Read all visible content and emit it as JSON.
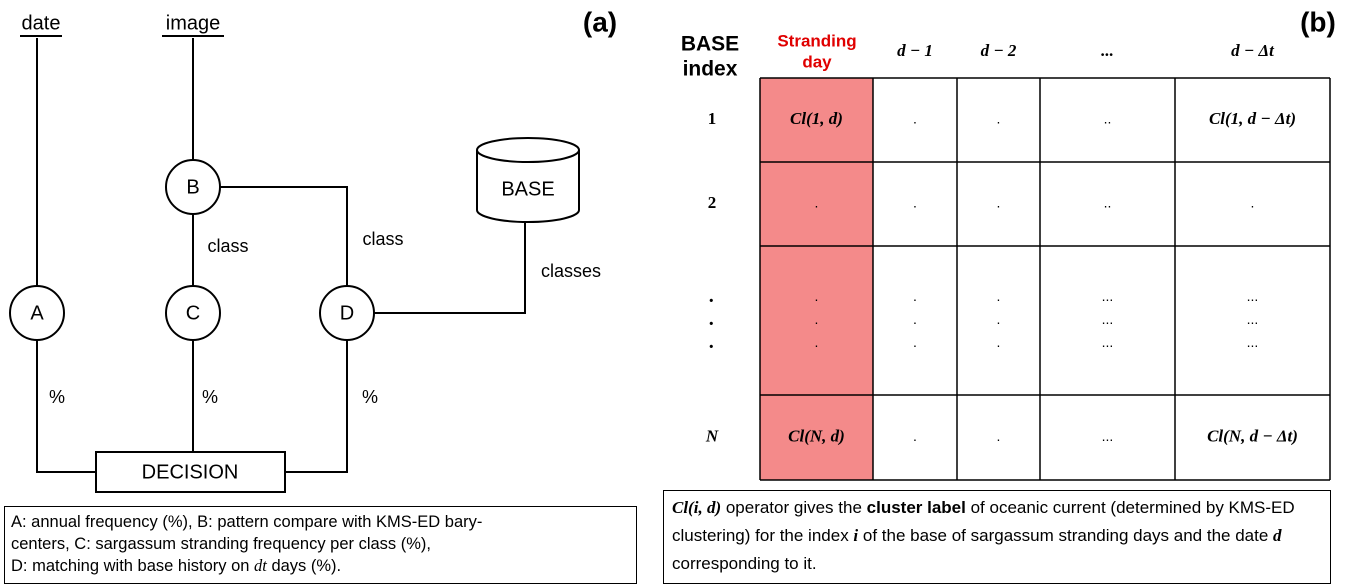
{
  "panel_a": {
    "label": "(a)",
    "inputs": [
      "date",
      "image"
    ],
    "nodes": [
      "A",
      "B",
      "C",
      "D"
    ],
    "base": "BASE",
    "decision": "DECISION",
    "edge_labels": [
      "class",
      "class",
      "classes",
      "%",
      "%",
      "%"
    ],
    "caption": [
      "A: annual frequency (%), B: pattern compare with KMS-ED bary-",
      "centers, C: sargassum stranding frequency per class (%),",
      "D: matching with base history on ",
      "dt",
      " days (%)."
    ]
  },
  "panel_b": {
    "label": "(b)",
    "index_header": [
      "BASE",
      "index"
    ],
    "highlight_header": [
      "Stranding",
      "day"
    ],
    "headers": [
      "d − 1",
      "d − 2",
      "...",
      "d − Δt"
    ],
    "rows": [
      [
        "1",
        "Cl(1, d)",
        ".",
        ".",
        "..",
        "Cl(1, d − Δt)"
      ],
      [
        "2",
        ".",
        ".",
        ".",
        "..",
        "."
      ],
      [
        [
          ".",
          ".",
          "."
        ],
        [
          ".",
          ".",
          "."
        ],
        [
          ".",
          ".",
          "."
        ],
        [
          ".",
          ".",
          "."
        ],
        [
          "...",
          "...",
          "..."
        ],
        [
          "...",
          "...",
          "..."
        ]
      ],
      [
        "N",
        "Cl(N, d)",
        ".",
        ".",
        "...",
        "Cl(N, d − Δt)"
      ]
    ],
    "caption": [
      "Cl(i, d)",
      " operator gives the ",
      "cluster label",
      " of oceanic current (determined by KMS-ED clustering) for the index ",
      "i",
      " of the base of sargassum stranding days and the date ",
      "d",
      " corresponding to it."
    ]
  }
}
